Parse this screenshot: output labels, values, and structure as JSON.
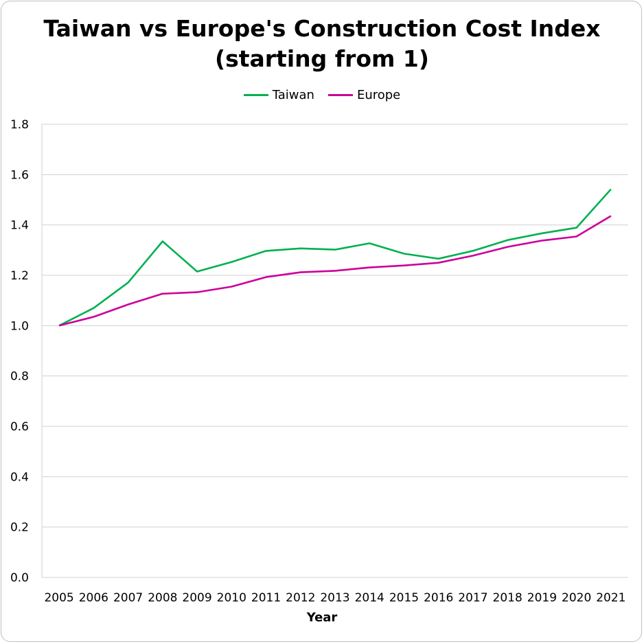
{
  "chart_data": {
    "type": "line",
    "title_line1": "Taiwan vs Europe's Construction Cost Index",
    "title_line2": "(starting from 1)",
    "xlabel": "Year",
    "ylabel": "",
    "categories": [
      "2005",
      "2006",
      "2007",
      "2008",
      "2009",
      "2010",
      "2011",
      "2012",
      "2013",
      "2014",
      "2015",
      "2016",
      "2017",
      "2018",
      "2019",
      "2020",
      "2021"
    ],
    "yticks": [
      "0.0",
      "0.2",
      "0.4",
      "0.6",
      "0.8",
      "1.0",
      "1.2",
      "1.4",
      "1.6",
      "1.8"
    ],
    "ylim": [
      0,
      1.8
    ],
    "grid": true,
    "legend_position": "top",
    "series": [
      {
        "name": "Taiwan",
        "color": "#00b050",
        "values": [
          1.0,
          1.07,
          1.171,
          1.335,
          1.215,
          1.253,
          1.297,
          1.307,
          1.302,
          1.327,
          1.286,
          1.266,
          1.297,
          1.34,
          1.367,
          1.389,
          1.542
        ]
      },
      {
        "name": "Europe",
        "color": "#cc0099",
        "values": [
          1.0,
          1.035,
          1.084,
          1.127,
          1.133,
          1.155,
          1.193,
          1.212,
          1.218,
          1.231,
          1.239,
          1.25,
          1.278,
          1.313,
          1.338,
          1.354,
          1.436
        ]
      }
    ]
  }
}
